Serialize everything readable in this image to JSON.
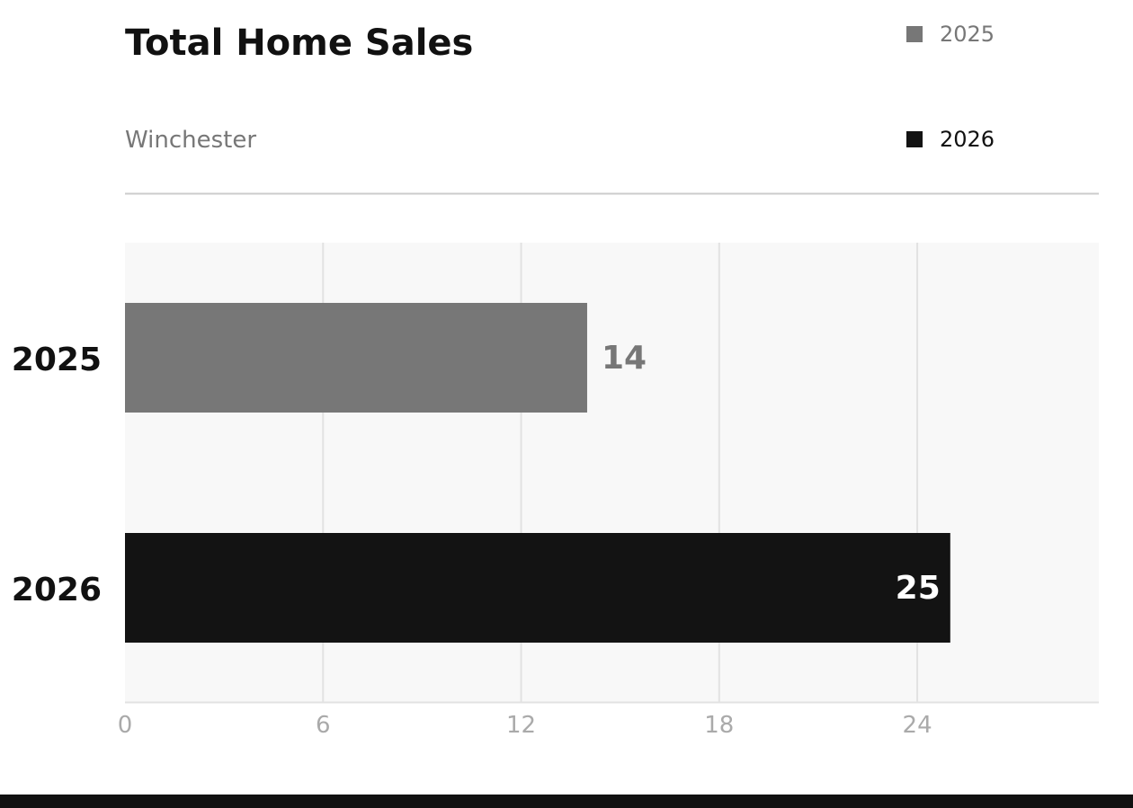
{
  "header": {
    "title": "Total Home Sales",
    "subtitle": "Winchester"
  },
  "colors": {
    "series_2025": "#777777",
    "series_2026": "#131313",
    "plot_background": "#f8f8f8",
    "gridline": "#e2e2e2",
    "divider": "#cccccc",
    "footer_bar": "#111111"
  },
  "legend": {
    "placement": "top-right",
    "items": [
      {
        "label": "2025",
        "color": "#777777",
        "text_color": "#777777"
      },
      {
        "label": "2026",
        "color": "#131313",
        "text_color": "#111111"
      }
    ]
  },
  "chart_data": {
    "type": "bar",
    "orientation": "horizontal",
    "title": "Total Home Sales",
    "subtitle": "Winchester",
    "categories": [
      "2025",
      "2026"
    ],
    "values": [
      14,
      25
    ],
    "value_labels": [
      "14",
      "25"
    ],
    "bar_colors": [
      "#777777",
      "#131313"
    ],
    "value_label_colors": [
      "#777777",
      "#ffffff"
    ],
    "value_label_position": [
      "outside",
      "inside"
    ],
    "xlim": [
      0,
      29.5
    ],
    "xticks": [
      0,
      6,
      12,
      18,
      24
    ],
    "xtick_labels": [
      "0",
      "6",
      "12",
      "18",
      "24"
    ],
    "grid": true,
    "xlabel": "",
    "ylabel": ""
  }
}
